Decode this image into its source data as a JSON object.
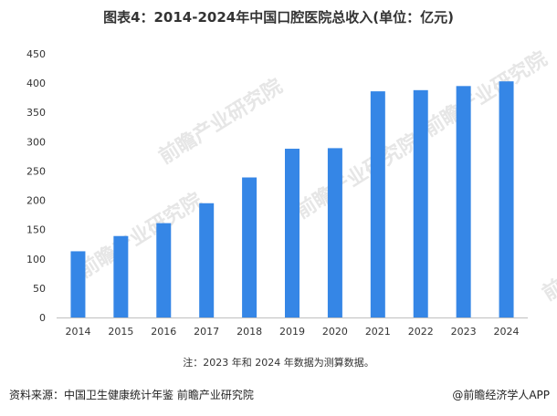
{
  "chart_data": {
    "type": "bar",
    "title": "图表4：2014-2024年中国口腔医院总收入(单位：亿元)",
    "categories": [
      "2014",
      "2015",
      "2016",
      "2017",
      "2018",
      "2019",
      "2020",
      "2021",
      "2022",
      "2023",
      "2024"
    ],
    "values": [
      113,
      139,
      161,
      195,
      239,
      288,
      289,
      386,
      388,
      395,
      403
    ],
    "ylim": [
      0,
      450
    ],
    "yticks": [
      0,
      50,
      100,
      150,
      200,
      250,
      300,
      350,
      400,
      450
    ],
    "grid": false,
    "bar_color": "#3586e6"
  },
  "note": "注：2023 年和 2024 年数据为测算数据。",
  "source": "资料来源：中国卫生健康统计年鉴 前瞻产业研究院",
  "brand": "@前瞻经济学人APP",
  "watermark": "前瞻产业研究院"
}
